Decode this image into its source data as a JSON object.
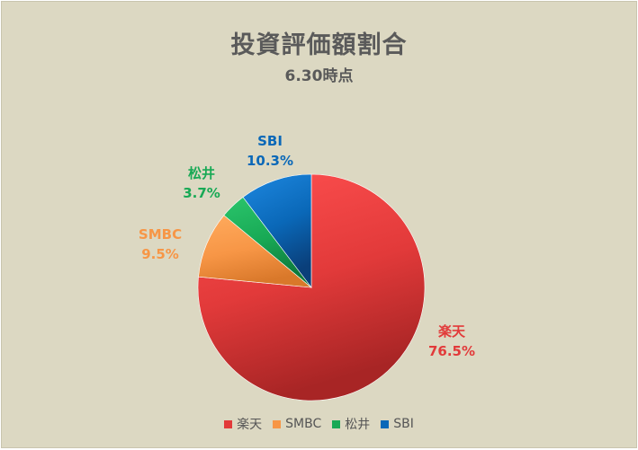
{
  "chart_data": {
    "type": "pie",
    "title": "投資評価額割合",
    "subtitle": "6.30時点",
    "slices": [
      {
        "name": "楽天",
        "value": 76.5,
        "label": "76.5%",
        "color": "#e23a3a",
        "color_light": "#ff5050",
        "color_dark": "#a82525"
      },
      {
        "name": "SMBC",
        "value": 9.5,
        "label": "9.5%",
        "color": "#f79646",
        "color_light": "#ffab5e",
        "color_dark": "#d9782a"
      },
      {
        "name": "松井",
        "value": 3.7,
        "label": "3.7%",
        "color": "#18a955",
        "color_light": "#2bc56c",
        "color_dark": "#0e7a3c"
      },
      {
        "name": "SBI",
        "value": 10.3,
        "label": "10.3%",
        "color": "#0a68b8",
        "color_light": "#1e88e0",
        "color_dark": "#0a3f7a"
      }
    ],
    "start": "12 o'clock",
    "direction": "clockwise",
    "legend_position": "bottom",
    "background": "#dcd8c2",
    "text_color": "#5a5a5a"
  }
}
